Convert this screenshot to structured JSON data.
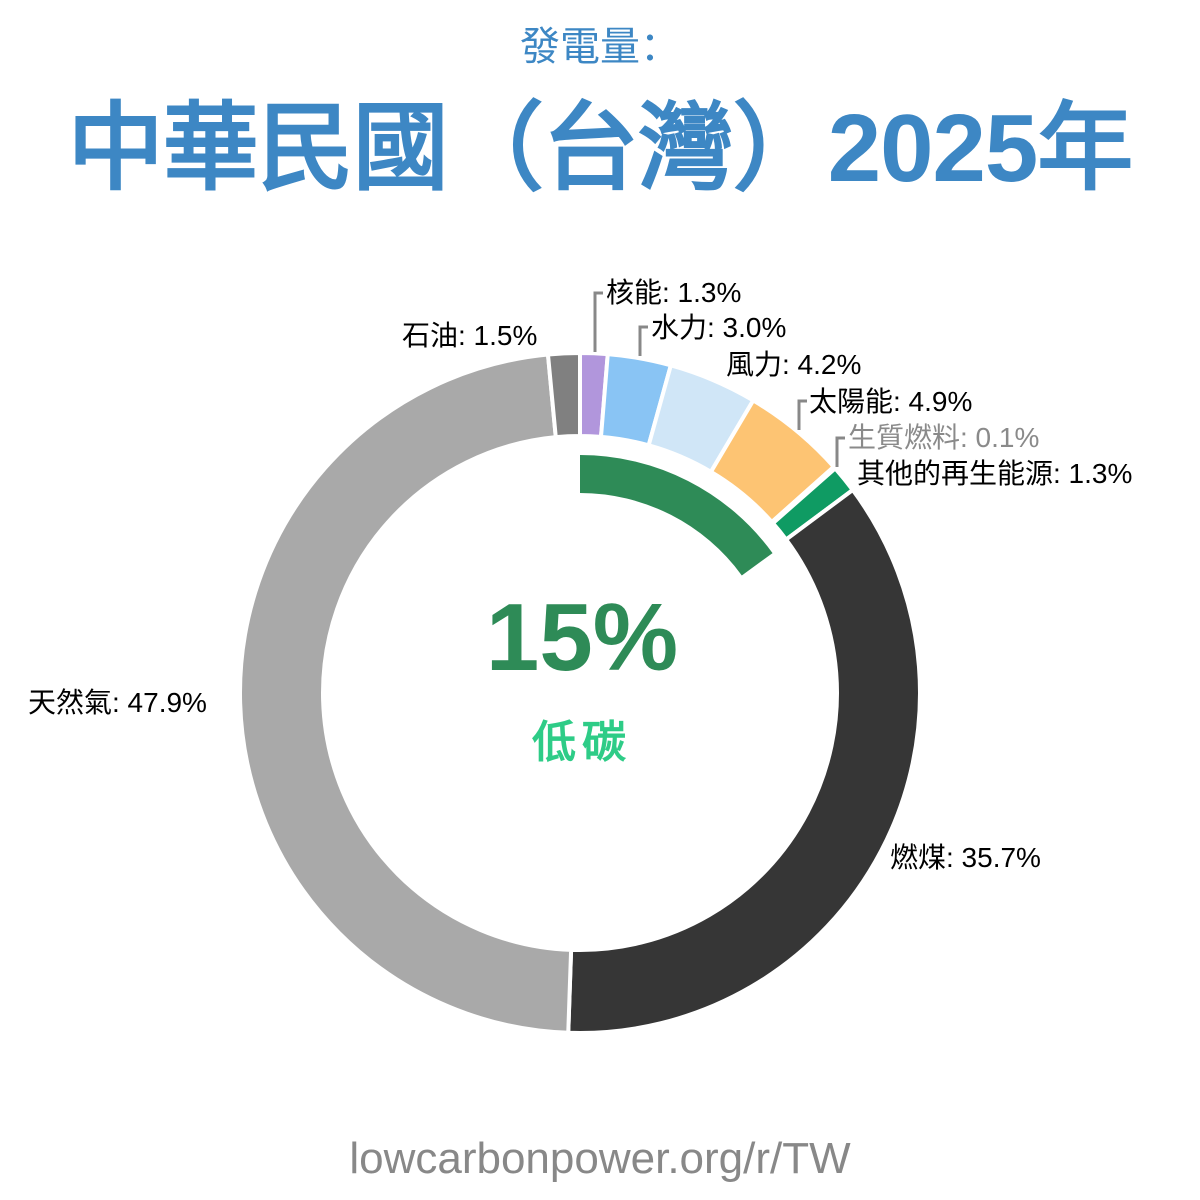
{
  "header": {
    "subtitle": "發電量：",
    "title": "中華民國（台灣）2025年"
  },
  "center": {
    "percent": "15%",
    "label": "低碳",
    "percent_color": "#2e8b57",
    "label_color": "#2ecc87"
  },
  "labels": {
    "nuclear": "核能: 1.3%",
    "hydro": "水力: 3.0%",
    "wind": "風力: 4.2%",
    "solar": "太陽能: 4.9%",
    "biomass": "生質燃料: 0.1%",
    "other_renewables": "其他的再生能源: 1.3%",
    "coal": "燃煤: 35.7%",
    "gas": "天然氣: 47.9%",
    "oil": "石油: 1.5%"
  },
  "footer": {
    "url": "lowcarbonpower.org/r/TW"
  },
  "chart_data": {
    "type": "pie",
    "title": "中華民國（台灣）2025年",
    "subtitle": "發電量：",
    "donut": true,
    "center_text": "15% 低碳",
    "start_angle_deg": 0,
    "direction": "clockwise",
    "categories": [
      "核能",
      "水力",
      "風力",
      "太陽能",
      "生質燃料",
      "其他的再生能源",
      "燃煤",
      "天然氣",
      "石油"
    ],
    "values": [
      1.3,
      3.0,
      4.2,
      4.9,
      0.1,
      1.3,
      35.7,
      47.9,
      1.5
    ],
    "colors": [
      "#b196dc",
      "#89c4f4",
      "#d0e6f7",
      "#fdc473",
      "#a0522d",
      "#0f9b63",
      "#363636",
      "#a9a9a9",
      "#808080"
    ],
    "low_carbon_share": 15,
    "low_carbon_arc_color": "#2e8b57",
    "units": "%",
    "source": "lowcarbonpower.org/r/TW"
  }
}
